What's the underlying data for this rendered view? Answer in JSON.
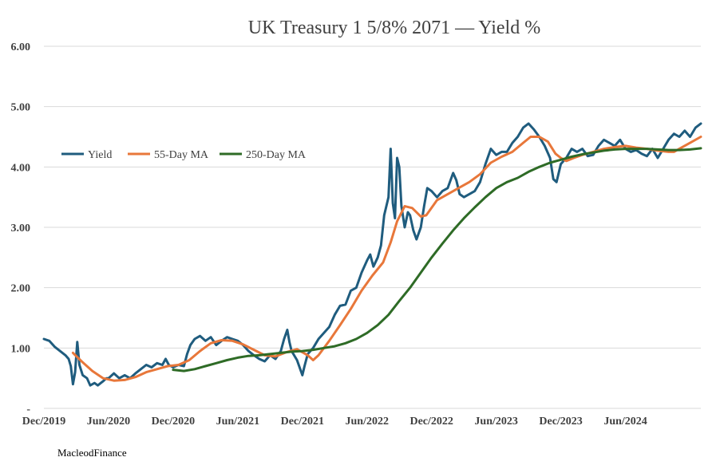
{
  "chart_data": {
    "type": "line",
    "title": "UK Treasury 1 5/8% 2071 — Yield %",
    "xlabel": "",
    "ylabel": "",
    "ylim": [
      0,
      6
    ],
    "yticks": [
      {
        "value": 0,
        "label": "-"
      },
      {
        "value": 1,
        "label": "1.00"
      },
      {
        "value": 2,
        "label": "2.00"
      },
      {
        "value": 3,
        "label": "3.00"
      },
      {
        "value": 4,
        "label": "4.00"
      },
      {
        "value": 5,
        "label": "5.00"
      },
      {
        "value": 6,
        "label": "6.00"
      }
    ],
    "xlim": [
      0,
      61
    ],
    "xticks": [
      {
        "value": 0,
        "label": "Dec/2019"
      },
      {
        "value": 6,
        "label": "Jun/2020"
      },
      {
        "value": 12,
        "label": "Dec/2020"
      },
      {
        "value": 18,
        "label": "Jun/2021"
      },
      {
        "value": 24,
        "label": "Dec/2021"
      },
      {
        "value": 30,
        "label": "Jun/2022"
      },
      {
        "value": 36,
        "label": "Dec/2022"
      },
      {
        "value": 42,
        "label": "Jun/2023"
      },
      {
        "value": 48,
        "label": "Dec/2023"
      },
      {
        "value": 54,
        "label": "Jun/2024"
      }
    ],
    "legend_position": "left-middle",
    "series": [
      {
        "name": "Yield",
        "color": "#1f5c7e",
        "width": 3,
        "points": [
          [
            0,
            1.15
          ],
          [
            0.5,
            1.12
          ],
          [
            1,
            1.02
          ],
          [
            1.5,
            0.95
          ],
          [
            2,
            0.88
          ],
          [
            2.3,
            0.82
          ],
          [
            2.5,
            0.7
          ],
          [
            2.7,
            0.4
          ],
          [
            2.9,
            0.6
          ],
          [
            3.1,
            1.1
          ],
          [
            3.3,
            0.72
          ],
          [
            3.6,
            0.55
          ],
          [
            4,
            0.5
          ],
          [
            4.3,
            0.38
          ],
          [
            4.7,
            0.42
          ],
          [
            5,
            0.38
          ],
          [
            5.5,
            0.45
          ],
          [
            5.8,
            0.5
          ],
          [
            6,
            0.5
          ],
          [
            6.5,
            0.58
          ],
          [
            7,
            0.5
          ],
          [
            7.5,
            0.55
          ],
          [
            8,
            0.5
          ],
          [
            8.5,
            0.58
          ],
          [
            9,
            0.65
          ],
          [
            9.5,
            0.72
          ],
          [
            10,
            0.68
          ],
          [
            10.5,
            0.75
          ],
          [
            11,
            0.72
          ],
          [
            11.3,
            0.82
          ],
          [
            11.6,
            0.72
          ],
          [
            12,
            0.68
          ],
          [
            12.5,
            0.72
          ],
          [
            13,
            0.7
          ],
          [
            13.3,
            0.9
          ],
          [
            13.6,
            1.05
          ],
          [
            14,
            1.15
          ],
          [
            14.5,
            1.2
          ],
          [
            15,
            1.12
          ],
          [
            15.5,
            1.18
          ],
          [
            16,
            1.05
          ],
          [
            16.5,
            1.12
          ],
          [
            17,
            1.18
          ],
          [
            17.5,
            1.15
          ],
          [
            18,
            1.12
          ],
          [
            18.5,
            1.05
          ],
          [
            19,
            0.95
          ],
          [
            19.5,
            0.88
          ],
          [
            20,
            0.82
          ],
          [
            20.5,
            0.78
          ],
          [
            21,
            0.88
          ],
          [
            21.5,
            0.82
          ],
          [
            22,
            0.95
          ],
          [
            22.3,
            1.15
          ],
          [
            22.6,
            1.3
          ],
          [
            22.8,
            1.1
          ],
          [
            23,
            0.95
          ],
          [
            23.5,
            0.8
          ],
          [
            24,
            0.55
          ],
          [
            24.2,
            0.7
          ],
          [
            24.5,
            0.9
          ],
          [
            25,
            1.0
          ],
          [
            25.5,
            1.15
          ],
          [
            26,
            1.25
          ],
          [
            26.5,
            1.35
          ],
          [
            27,
            1.55
          ],
          [
            27.5,
            1.7
          ],
          [
            28,
            1.72
          ],
          [
            28.5,
            1.95
          ],
          [
            29,
            2.0
          ],
          [
            29.5,
            2.25
          ],
          [
            30,
            2.45
          ],
          [
            30.3,
            2.55
          ],
          [
            30.6,
            2.35
          ],
          [
            31,
            2.5
          ],
          [
            31.3,
            2.7
          ],
          [
            31.6,
            3.2
          ],
          [
            32,
            3.5
          ],
          [
            32.2,
            4.3
          ],
          [
            32.4,
            3.4
          ],
          [
            32.6,
            3.15
          ],
          [
            32.8,
            4.15
          ],
          [
            33,
            4.0
          ],
          [
            33.2,
            3.35
          ],
          [
            33.5,
            3.0
          ],
          [
            33.8,
            3.25
          ],
          [
            34,
            3.2
          ],
          [
            34.3,
            2.95
          ],
          [
            34.6,
            2.8
          ],
          [
            35,
            3.0
          ],
          [
            35.3,
            3.35
          ],
          [
            35.6,
            3.65
          ],
          [
            36,
            3.6
          ],
          [
            36.5,
            3.5
          ],
          [
            37,
            3.6
          ],
          [
            37.5,
            3.65
          ],
          [
            38,
            3.9
          ],
          [
            38.3,
            3.78
          ],
          [
            38.6,
            3.55
          ],
          [
            39,
            3.5
          ],
          [
            39.5,
            3.55
          ],
          [
            40,
            3.6
          ],
          [
            40.5,
            3.75
          ],
          [
            41,
            4.05
          ],
          [
            41.5,
            4.3
          ],
          [
            42,
            4.2
          ],
          [
            42.5,
            4.25
          ],
          [
            43,
            4.25
          ],
          [
            43.5,
            4.4
          ],
          [
            44,
            4.5
          ],
          [
            44.5,
            4.65
          ],
          [
            45,
            4.72
          ],
          [
            45.5,
            4.62
          ],
          [
            46,
            4.5
          ],
          [
            46.5,
            4.35
          ],
          [
            47,
            4.15
          ],
          [
            47.3,
            3.8
          ],
          [
            47.6,
            3.75
          ],
          [
            48,
            4.05
          ],
          [
            48.5,
            4.15
          ],
          [
            49,
            4.3
          ],
          [
            49.5,
            4.25
          ],
          [
            50,
            4.3
          ],
          [
            50.5,
            4.18
          ],
          [
            51,
            4.2
          ],
          [
            51.5,
            4.35
          ],
          [
            52,
            4.45
          ],
          [
            52.5,
            4.4
          ],
          [
            53,
            4.35
          ],
          [
            53.5,
            4.45
          ],
          [
            54,
            4.3
          ],
          [
            54.5,
            4.25
          ],
          [
            55,
            4.28
          ],
          [
            55.5,
            4.22
          ],
          [
            56,
            4.18
          ],
          [
            56.5,
            4.3
          ],
          [
            57,
            4.15
          ],
          [
            57.5,
            4.3
          ],
          [
            58,
            4.45
          ],
          [
            58.5,
            4.55
          ],
          [
            59,
            4.5
          ],
          [
            59.5,
            4.6
          ],
          [
            60,
            4.5
          ],
          [
            60.5,
            4.65
          ],
          [
            61,
            4.72
          ]
        ]
      },
      {
        "name": "55-Day MA",
        "color": "#e8773a",
        "width": 3,
        "points": [
          [
            2.7,
            0.92
          ],
          [
            3.5,
            0.78
          ],
          [
            4.5,
            0.62
          ],
          [
            5.5,
            0.5
          ],
          [
            6.5,
            0.46
          ],
          [
            7.5,
            0.47
          ],
          [
            8.5,
            0.52
          ],
          [
            9.5,
            0.6
          ],
          [
            10.5,
            0.65
          ],
          [
            11.5,
            0.7
          ],
          [
            12.5,
            0.72
          ],
          [
            13.5,
            0.8
          ],
          [
            14.5,
            0.95
          ],
          [
            15.5,
            1.08
          ],
          [
            16.5,
            1.13
          ],
          [
            17.5,
            1.12
          ],
          [
            18.5,
            1.06
          ],
          [
            19.5,
            0.97
          ],
          [
            20.5,
            0.88
          ],
          [
            21.5,
            0.86
          ],
          [
            22.5,
            0.93
          ],
          [
            23.5,
            0.98
          ],
          [
            24.5,
            0.88
          ],
          [
            25,
            0.8
          ],
          [
            25.5,
            0.88
          ],
          [
            26.5,
            1.12
          ],
          [
            27.5,
            1.38
          ],
          [
            28.5,
            1.65
          ],
          [
            29.5,
            1.95
          ],
          [
            30.5,
            2.2
          ],
          [
            31.5,
            2.42
          ],
          [
            32.2,
            2.75
          ],
          [
            32.8,
            3.1
          ],
          [
            33.5,
            3.35
          ],
          [
            34.2,
            3.32
          ],
          [
            35,
            3.18
          ],
          [
            35.5,
            3.2
          ],
          [
            36.5,
            3.45
          ],
          [
            37.5,
            3.55
          ],
          [
            38.5,
            3.65
          ],
          [
            39.5,
            3.75
          ],
          [
            40.5,
            3.88
          ],
          [
            41.5,
            4.07
          ],
          [
            42.5,
            4.17
          ],
          [
            43.5,
            4.25
          ],
          [
            44.5,
            4.4
          ],
          [
            45.2,
            4.5
          ],
          [
            46,
            4.5
          ],
          [
            46.8,
            4.42
          ],
          [
            47.5,
            4.22
          ],
          [
            48,
            4.15
          ],
          [
            48.5,
            4.1
          ],
          [
            49.2,
            4.15
          ],
          [
            50,
            4.2
          ],
          [
            51,
            4.25
          ],
          [
            52,
            4.3
          ],
          [
            53,
            4.33
          ],
          [
            54,
            4.35
          ],
          [
            55,
            4.32
          ],
          [
            56,
            4.3
          ],
          [
            57,
            4.27
          ],
          [
            58,
            4.25
          ],
          [
            58.5,
            4.25
          ],
          [
            59,
            4.3
          ],
          [
            60,
            4.4
          ],
          [
            61,
            4.5
          ]
        ]
      },
      {
        "name": "250-Day MA",
        "color": "#2e6b26",
        "width": 3,
        "points": [
          [
            12,
            0.64
          ],
          [
            13,
            0.62
          ],
          [
            14,
            0.65
          ],
          [
            15,
            0.7
          ],
          [
            16,
            0.75
          ],
          [
            17,
            0.8
          ],
          [
            18,
            0.84
          ],
          [
            19,
            0.87
          ],
          [
            20,
            0.88
          ],
          [
            21,
            0.9
          ],
          [
            22,
            0.92
          ],
          [
            23,
            0.94
          ],
          [
            24,
            0.95
          ],
          [
            25,
            0.97
          ],
          [
            26,
            1.0
          ],
          [
            27,
            1.03
          ],
          [
            28,
            1.08
          ],
          [
            29,
            1.15
          ],
          [
            30,
            1.25
          ],
          [
            31,
            1.38
          ],
          [
            32,
            1.55
          ],
          [
            33,
            1.78
          ],
          [
            34,
            2.0
          ],
          [
            35,
            2.25
          ],
          [
            36,
            2.5
          ],
          [
            37,
            2.73
          ],
          [
            38,
            2.95
          ],
          [
            39,
            3.15
          ],
          [
            40,
            3.33
          ],
          [
            41,
            3.5
          ],
          [
            42,
            3.65
          ],
          [
            43,
            3.75
          ],
          [
            44,
            3.82
          ],
          [
            45,
            3.92
          ],
          [
            46,
            4.0
          ],
          [
            47,
            4.07
          ],
          [
            48,
            4.12
          ],
          [
            49,
            4.17
          ],
          [
            50,
            4.21
          ],
          [
            51,
            4.24
          ],
          [
            52,
            4.27
          ],
          [
            53,
            4.29
          ],
          [
            54,
            4.3
          ],
          [
            55,
            4.3
          ],
          [
            56,
            4.3
          ],
          [
            57,
            4.29
          ],
          [
            58,
            4.28
          ],
          [
            59,
            4.28
          ],
          [
            60,
            4.29
          ],
          [
            61,
            4.31
          ]
        ]
      }
    ]
  },
  "source_label": "MacleodFinance"
}
